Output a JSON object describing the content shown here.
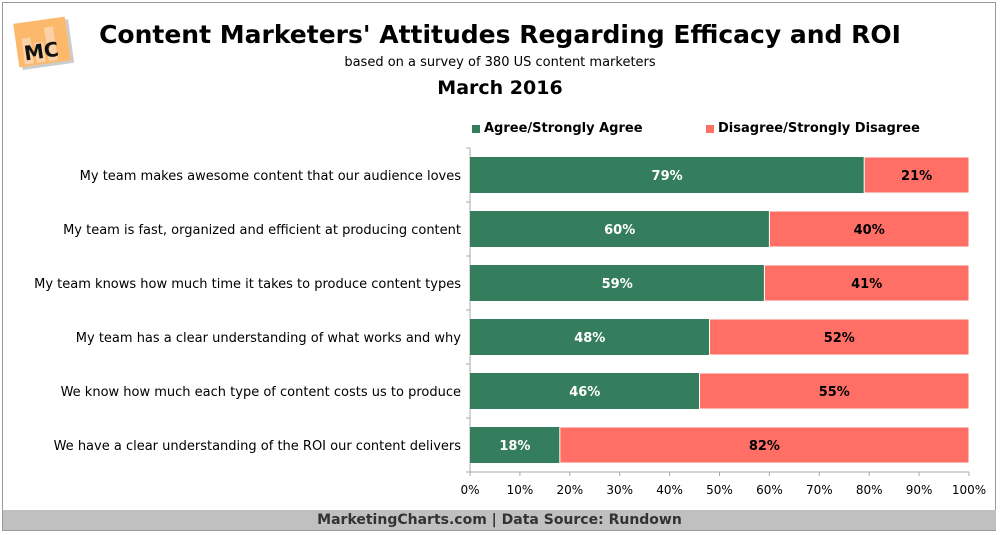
{
  "logo_text": "MC",
  "footer": "MarketingCharts.com | Data Source: Rundown",
  "chart_data": {
    "type": "bar",
    "orientation": "horizontal",
    "stacked": true,
    "title": "Content Marketers' Attitudes Regarding Efficacy and ROI",
    "subtitle": "based on a survey of 380 US content marketers",
    "date": "March 2016",
    "legend_position": "top",
    "categories": [
      "My team makes awesome content that our audience loves",
      "My team is fast, organized and efficient at producing content",
      "My team knows how much time it takes to produce content types",
      "My team has a clear understanding of what works and why",
      "We know how much each type of content costs us to produce",
      "We have a clear understanding of the ROI our content delivers"
    ],
    "series": [
      {
        "name": "Agree/Strongly Agree",
        "color": "#357e5d",
        "values": [
          79,
          60,
          59,
          48,
          46,
          18
        ]
      },
      {
        "name": "Disagree/Strongly Disagree",
        "color": "#ff6f66",
        "values": [
          21,
          40,
          41,
          52,
          55,
          82
        ]
      }
    ],
    "xlim": [
      0,
      100
    ],
    "xticks": [
      "0%",
      "10%",
      "20%",
      "30%",
      "40%",
      "50%",
      "60%",
      "70%",
      "80%",
      "90%",
      "100%"
    ],
    "grid": false
  }
}
